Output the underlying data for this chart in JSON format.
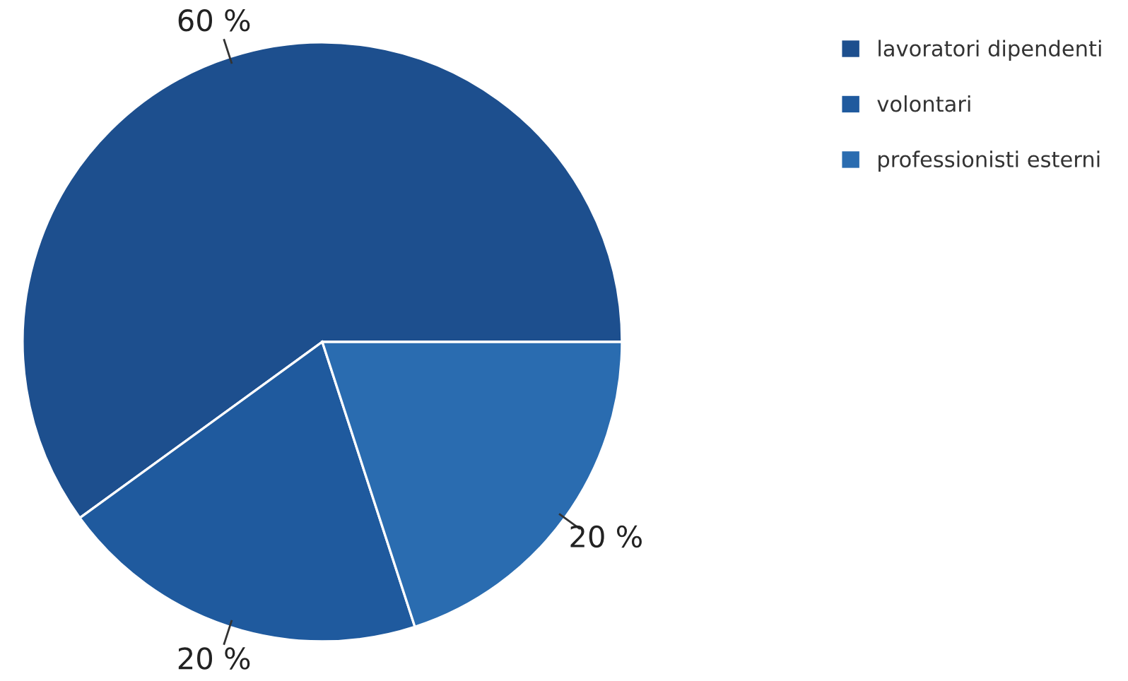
{
  "chart_data": {
    "type": "pie",
    "categories": [
      "lavoratori dipendenti",
      "volontari",
      "professionisti esterni"
    ],
    "values": [
      60,
      20,
      20
    ],
    "colors": [
      "#1d4f8e",
      "#1f5a9e",
      "#2a6cb0"
    ],
    "value_labels": [
      "60 %",
      "20 %",
      "20 %"
    ],
    "legend": "top right"
  }
}
